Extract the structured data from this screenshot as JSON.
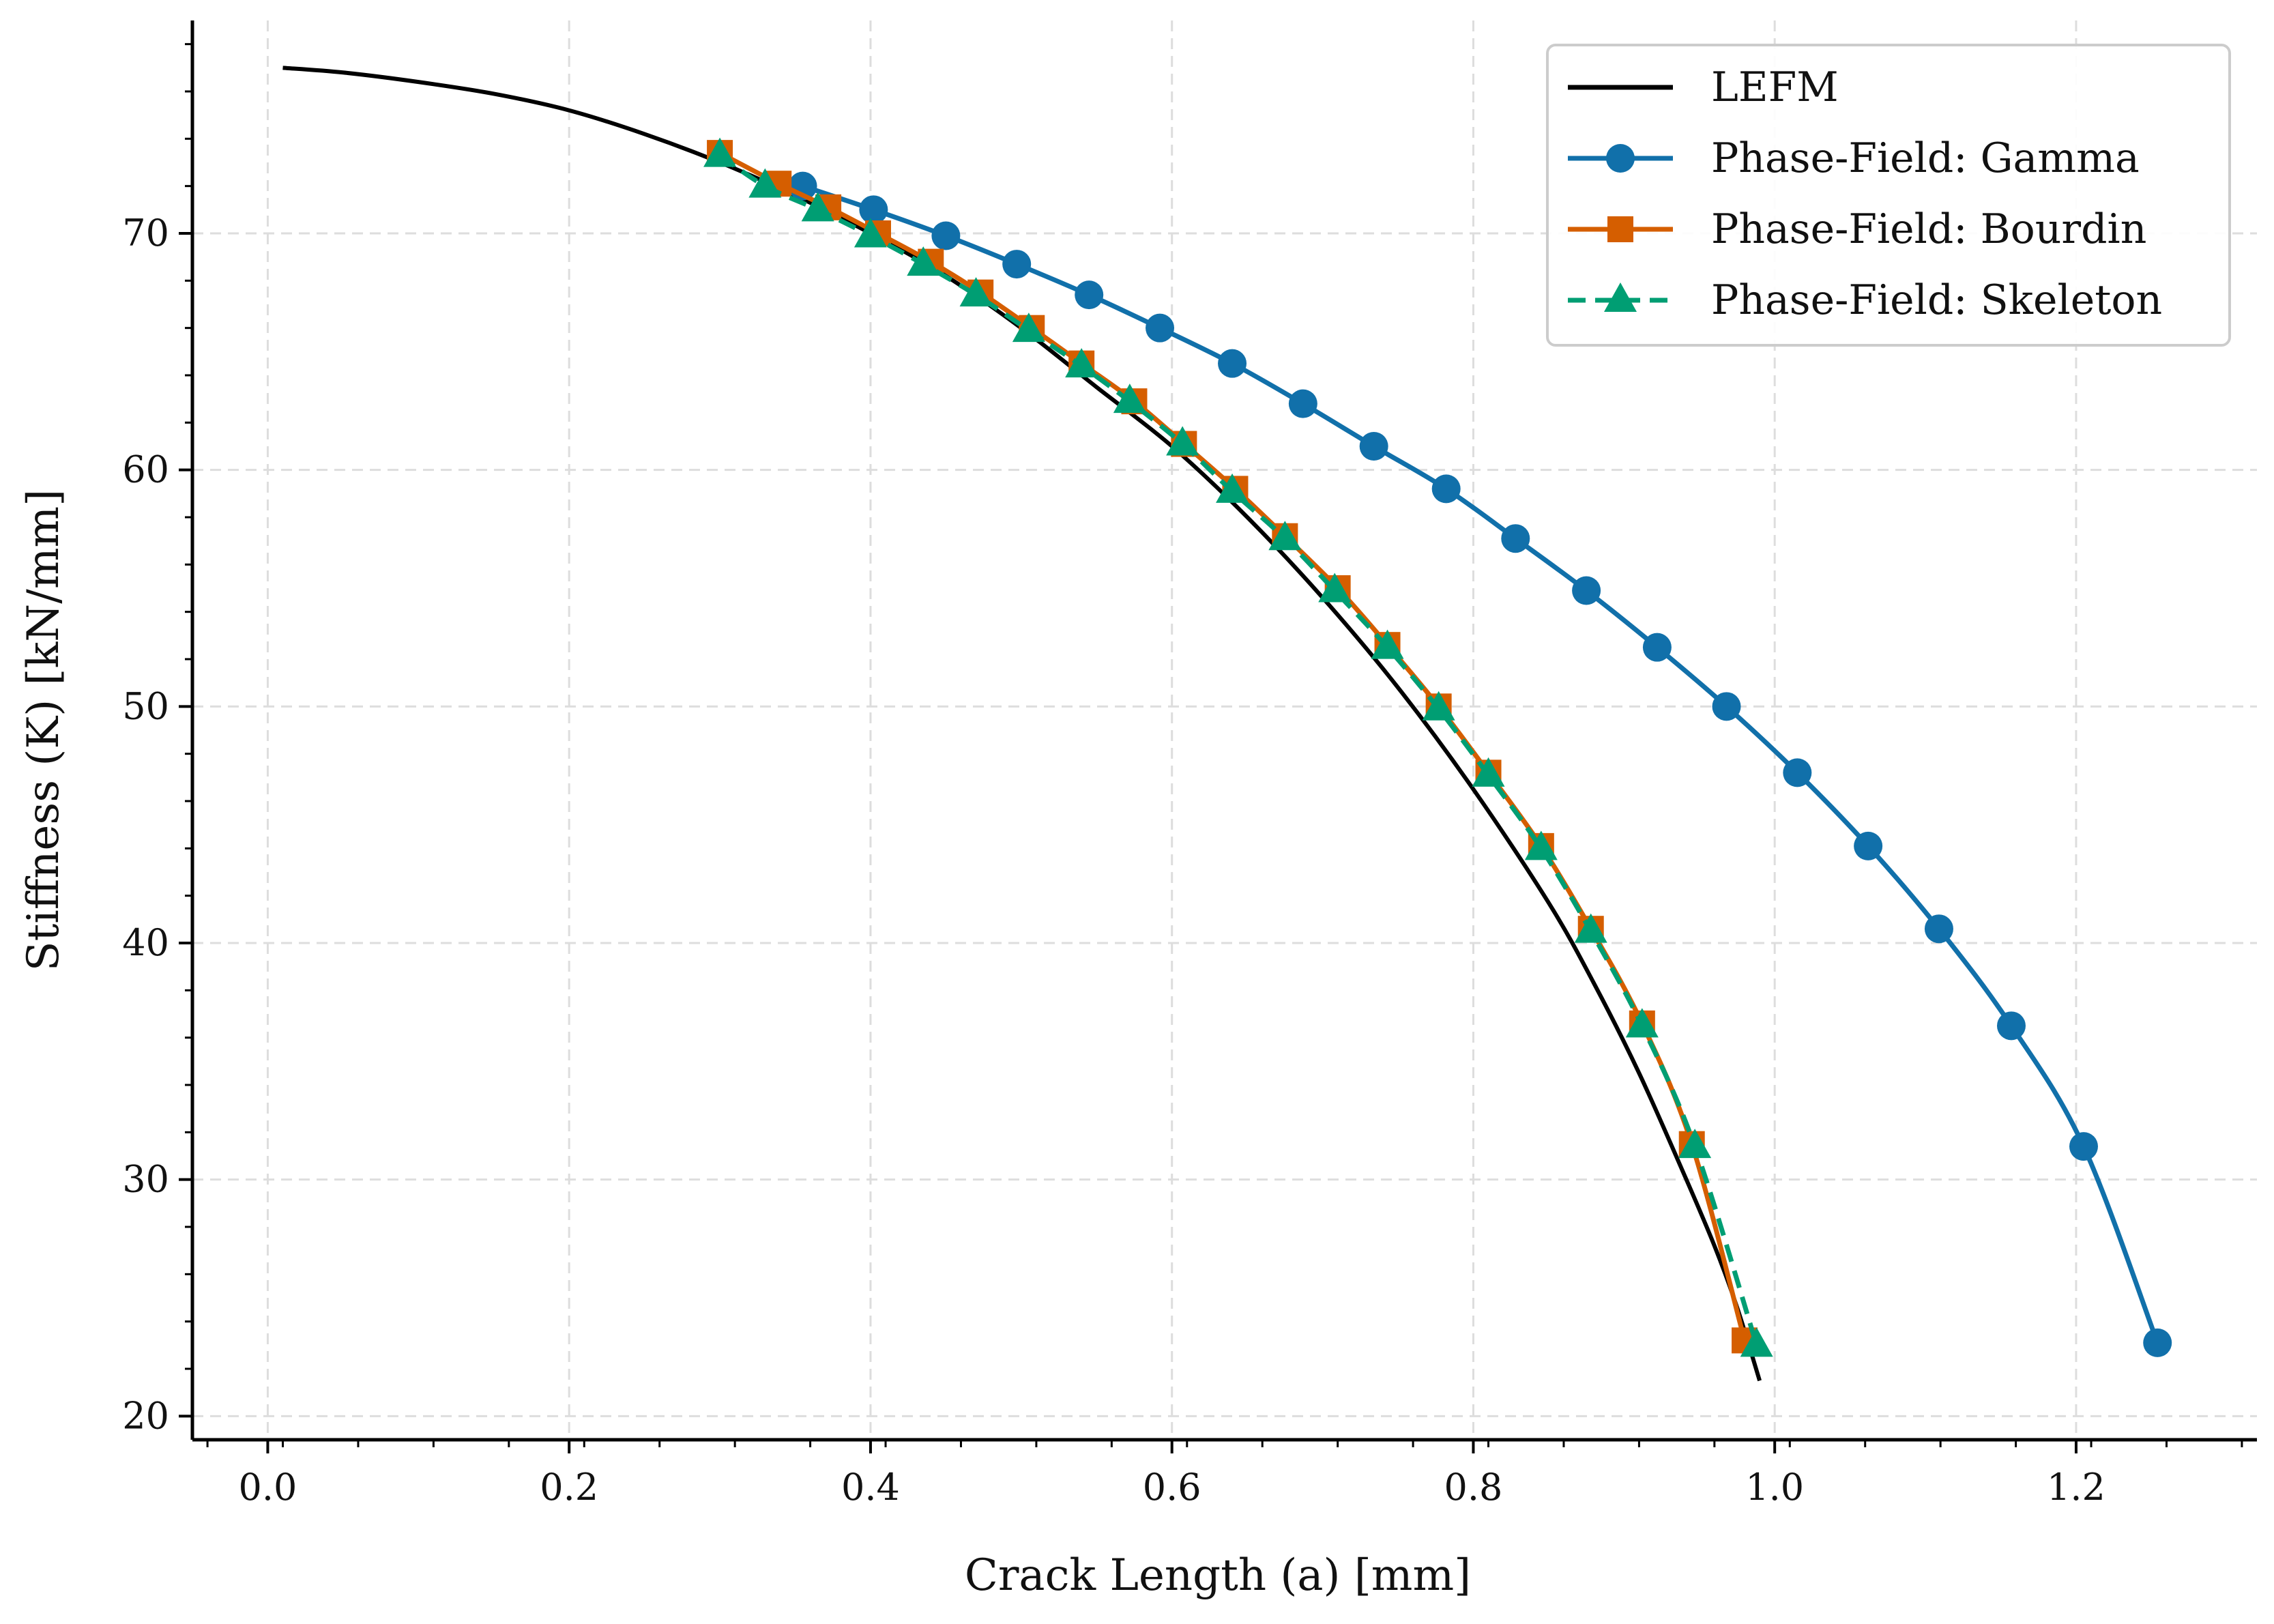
{
  "chart_data": {
    "type": "line",
    "title": "",
    "xlabel": "Crack Length (a) [mm]",
    "ylabel": "Stiffness (K) [kN/mm]",
    "xlim": [
      -0.05,
      1.32
    ],
    "ylim": [
      19,
      79
    ],
    "x_ticks": [
      "0.0",
      "0.2",
      "0.4",
      "0.6",
      "0.8",
      "1.0",
      "1.2"
    ],
    "y_ticks": [
      "20",
      "30",
      "40",
      "50",
      "60",
      "70"
    ],
    "grid": true,
    "legend_position": "top-right",
    "series": [
      {
        "name": "LEFM",
        "color": "#000000",
        "style": "solid",
        "marker": "none",
        "x": [
          0.01,
          0.05,
          0.1,
          0.15,
          0.2,
          0.25,
          0.3,
          0.35,
          0.4,
          0.45,
          0.5,
          0.55,
          0.6,
          0.65,
          0.7,
          0.75,
          0.8,
          0.85,
          0.88,
          0.91,
          0.94,
          0.96,
          0.975,
          0.99
        ],
        "y": [
          77.0,
          76.8,
          76.4,
          75.9,
          75.2,
          74.2,
          73.0,
          71.6,
          70.0,
          68.2,
          66.0,
          63.5,
          61.0,
          58.0,
          54.6,
          50.8,
          46.5,
          41.7,
          38.3,
          34.5,
          30.2,
          27.2,
          24.6,
          21.5
        ]
      },
      {
        "name": "Phase-Field: Gamma",
        "color": "#1170aa",
        "style": "solid",
        "marker": "circle",
        "x": [
          0.355,
          0.402,
          0.45,
          0.497,
          0.545,
          0.592,
          0.64,
          0.687,
          0.734,
          0.782,
          0.828,
          0.875,
          0.922,
          0.968,
          1.015,
          1.062,
          1.109,
          1.157,
          1.205,
          1.254
        ],
        "y": [
          72.0,
          71.0,
          69.9,
          68.7,
          67.4,
          66.0,
          64.5,
          62.8,
          61.0,
          59.2,
          57.1,
          54.9,
          52.5,
          50.0,
          47.2,
          44.1,
          40.6,
          36.5,
          31.4,
          23.1
        ]
      },
      {
        "name": "Phase-Field: Bourdin",
        "color": "#d55e00",
        "style": "solid",
        "marker": "square",
        "x": [
          0.3,
          0.339,
          0.372,
          0.405,
          0.44,
          0.473,
          0.507,
          0.54,
          0.575,
          0.608,
          0.642,
          0.675,
          0.71,
          0.743,
          0.777,
          0.81,
          0.845,
          0.878,
          0.912,
          0.945,
          0.98
        ],
        "y": [
          73.4,
          72.1,
          71.1,
          70.0,
          68.8,
          67.5,
          66.0,
          64.5,
          62.9,
          61.1,
          59.2,
          57.2,
          55.0,
          52.6,
          50.0,
          47.2,
          44.1,
          40.6,
          36.6,
          31.5,
          23.2
        ]
      },
      {
        "name": "Phase-Field: Skeleton",
        "color": "#009e73",
        "style": "dashed",
        "marker": "triangle",
        "x": [
          0.3,
          0.33,
          0.365,
          0.4,
          0.435,
          0.47,
          0.505,
          0.54,
          0.572,
          0.607,
          0.64,
          0.675,
          0.708,
          0.743,
          0.777,
          0.81,
          0.845,
          0.878,
          0.912,
          0.947,
          0.988
        ],
        "y": [
          73.3,
          72.0,
          71.0,
          69.9,
          68.7,
          67.4,
          65.9,
          64.4,
          62.9,
          61.1,
          59.1,
          57.1,
          54.9,
          52.5,
          49.9,
          47.1,
          44.0,
          40.5,
          36.5,
          31.4,
          23.0
        ]
      }
    ]
  }
}
